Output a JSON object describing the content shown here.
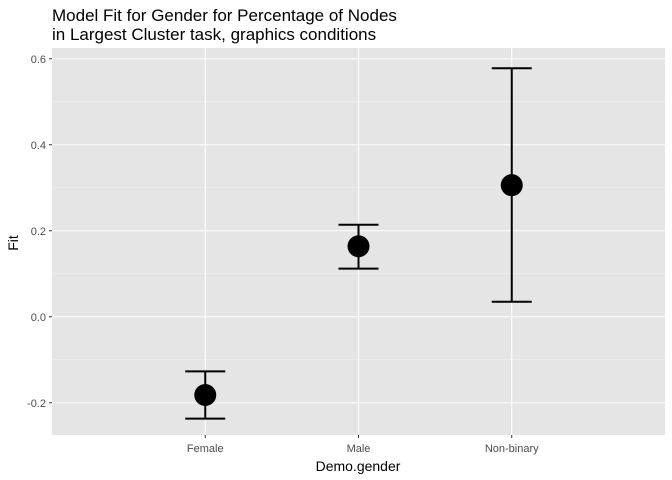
{
  "chart_data": {
    "type": "scatter",
    "title_lines": [
      "Model Fit for Gender for Percentage of Nodes",
      "in Largest Cluster task, graphics conditions"
    ],
    "xlabel": "Demo.gender",
    "ylabel": "Fit",
    "categories": [
      "Female",
      "Male",
      "Non-binary"
    ],
    "series": [
      {
        "values": [
          -0.182,
          0.164,
          0.306
        ],
        "lower": [
          -0.237,
          0.112,
          0.035
        ],
        "upper": [
          -0.127,
          0.214,
          0.578
        ]
      }
    ],
    "ylim": [
      -0.275,
      0.625
    ],
    "yticks": [
      -0.2,
      0.0,
      0.2,
      0.4,
      0.6
    ],
    "ytick_labels": [
      "-0.2",
      "0.0",
      "0.2",
      "0.4",
      "0.6"
    ],
    "grid": true,
    "legend": "none",
    "colors": {
      "panel": "#e5e5e5",
      "grid_major": "#ffffff",
      "grid_minor": "#f2f2f2",
      "point": "#000000",
      "tick_text": "#4d4d4d"
    }
  }
}
